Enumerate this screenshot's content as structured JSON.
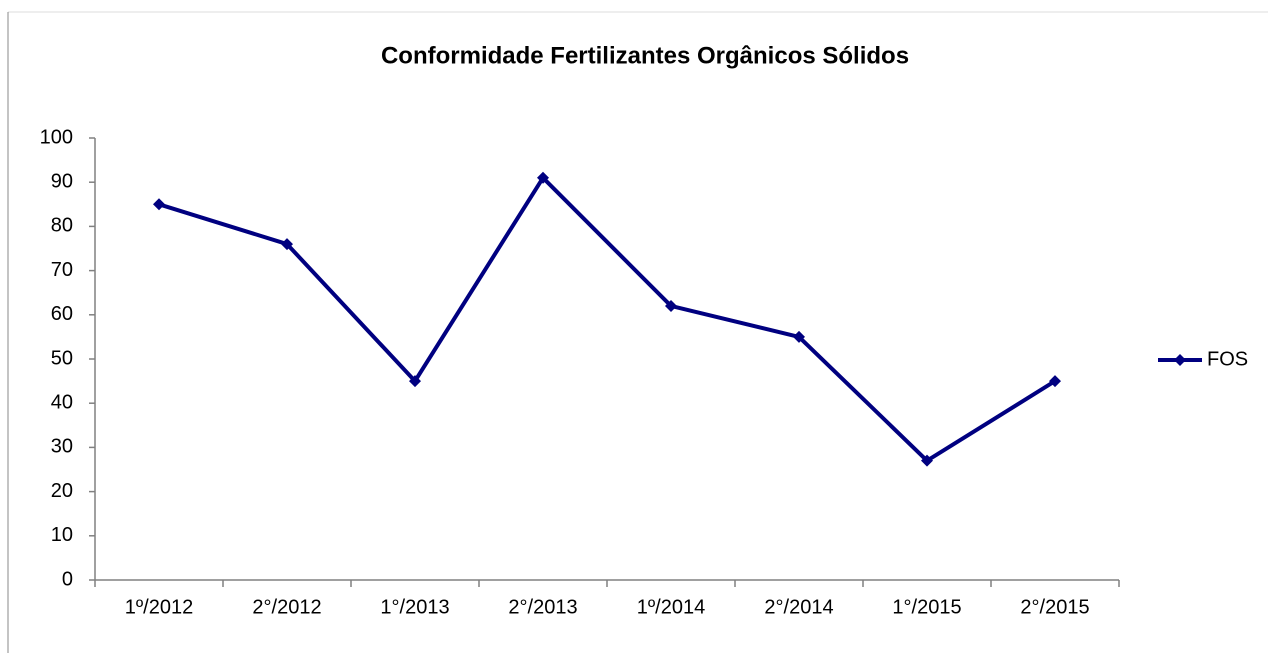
{
  "chart_data": {
    "type": "line",
    "title": "Conformidade Fertilizantes Orgânicos Sólidos",
    "categories": [
      "1º/2012",
      "2°/2012",
      "1°/2013",
      "2°/2013",
      "1º/2014",
      "2°/2014",
      "1°/2015",
      "2°/2015"
    ],
    "series": [
      {
        "name": "FOS",
        "color": "#000080",
        "values": [
          85,
          76,
          45,
          91,
          62,
          55,
          27,
          45
        ]
      }
    ],
    "ylim": [
      0,
      100
    ],
    "yticks": [
      0,
      10,
      20,
      30,
      40,
      50,
      60,
      70,
      80,
      90,
      100
    ],
    "grid": false,
    "legend": "right"
  }
}
